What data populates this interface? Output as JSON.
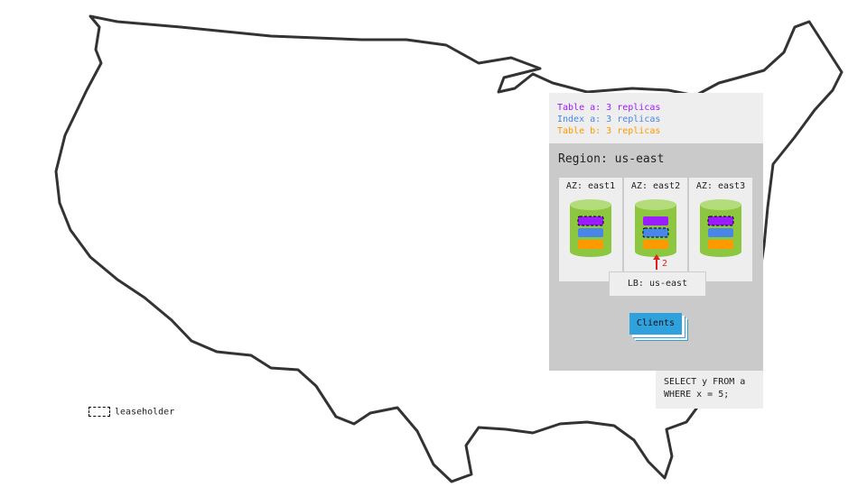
{
  "legend": [
    {
      "text": "Table a: 3 replicas",
      "color": "#9b1cff"
    },
    {
      "text": "Index a: 3 replicas",
      "color": "#4a86e8"
    },
    {
      "text": "Table b: 3 replicas",
      "color": "#ff9900"
    }
  ],
  "region": {
    "title": "Region: us-east",
    "azs": [
      {
        "label": "AZ: east1",
        "leaseholder": 1
      },
      {
        "label": "AZ: east2",
        "leaseholder": 2
      },
      {
        "label": "AZ: east3",
        "leaseholder": 0
      }
    ],
    "arrow_label": "2",
    "lb": "LB: us-east",
    "clients": "Clients"
  },
  "query": [
    "SELECT y FROM a",
    "WHERE x = 5;"
  ],
  "leaseholder_legend": "leaseholder",
  "colors": {
    "cylinder": "#8dc63f",
    "cylinder_top": "#b5dc7a",
    "arrow": "#e02020"
  }
}
